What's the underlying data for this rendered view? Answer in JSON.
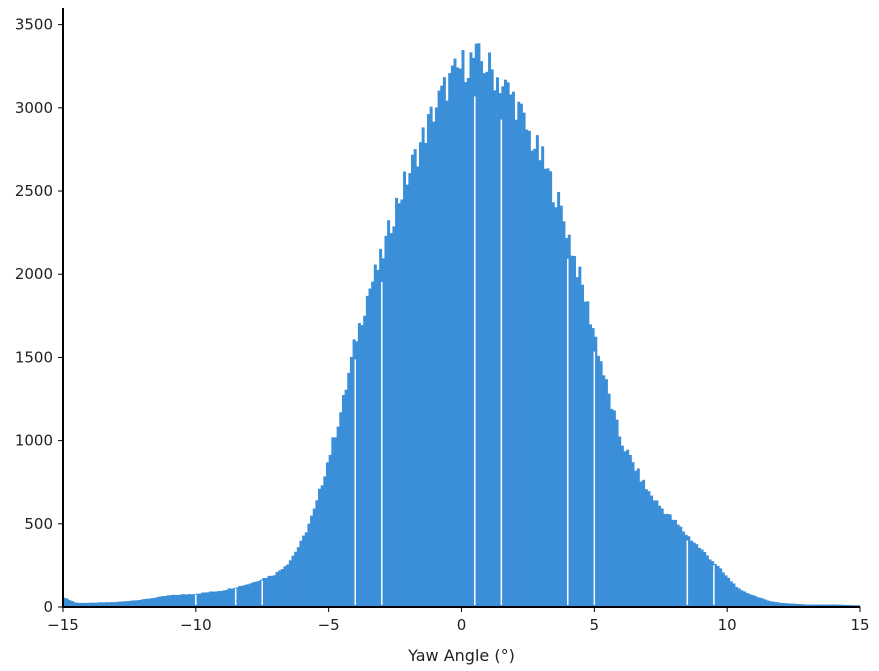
{
  "chart_data": {
    "type": "bar",
    "title": "",
    "xlabel": "Yaw Angle (°)",
    "ylabel": "",
    "xlim": [
      -15,
      15
    ],
    "ylim": [
      0,
      3600
    ],
    "x_ticks": [
      -15,
      -10,
      -5,
      0,
      5,
      10,
      15
    ],
    "x_tick_labels": [
      "−15",
      "−10",
      "−5",
      "0",
      "5",
      "10",
      "15"
    ],
    "y_ticks": [
      0,
      500,
      1000,
      1500,
      2000,
      2500,
      3000,
      3500
    ],
    "y_tick_labels": [
      "0",
      "500",
      "1000",
      "1500",
      "2000",
      "2500",
      "3000",
      "3500"
    ],
    "grid": false,
    "color": "#3a8fd8",
    "bin_width": 0.1,
    "bin_centers_range": [
      -14.95,
      14.95
    ],
    "envelope": {
      "x": [
        -15,
        -14.5,
        -14,
        -13,
        -12,
        -11,
        -10,
        -9,
        -8.5,
        -8,
        -7.5,
        -7,
        -6.5,
        -6,
        -5.5,
        -5,
        -4.5,
        -4,
        -3.5,
        -3,
        -2.5,
        -2,
        -1.5,
        -1,
        -0.5,
        0,
        0.5,
        1,
        1.5,
        2,
        2.5,
        3,
        3.5,
        4,
        4.5,
        5,
        5.5,
        6,
        6.5,
        7,
        7.5,
        8,
        8.5,
        9,
        9.5,
        10,
        10.5,
        11,
        11.5,
        12,
        12.5,
        13,
        14,
        15
      ],
      "y": [
        60,
        25,
        25,
        30,
        45,
        70,
        80,
        100,
        120,
        140,
        170,
        200,
        270,
        400,
        600,
        900,
        1200,
        1600,
        1900,
        2100,
        2400,
        2600,
        2800,
        3000,
        3150,
        3250,
        3300,
        3250,
        3150,
        3050,
        2850,
        2700,
        2500,
        2250,
        1950,
        1650,
        1300,
        1000,
        850,
        700,
        600,
        520,
        430,
        350,
        270,
        180,
        100,
        70,
        40,
        25,
        20,
        15,
        15,
        10
      ]
    },
    "gap_positions": [
      -10,
      -8.5,
      -7.5,
      -4,
      -3,
      0.5,
      1.5,
      4,
      5,
      8.5,
      9.5
    ]
  }
}
